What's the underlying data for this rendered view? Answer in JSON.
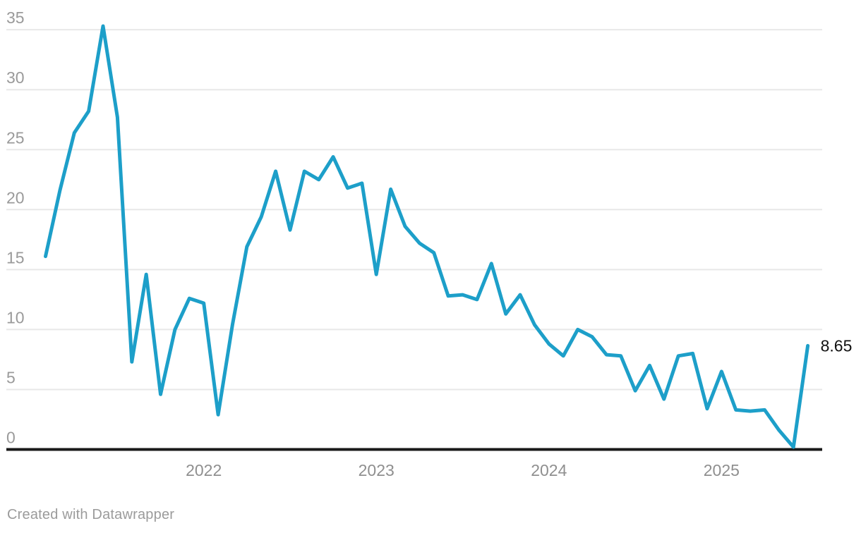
{
  "chart_data": {
    "type": "line",
    "x": [
      "2021-02",
      "2021-03",
      "2021-04",
      "2021-05",
      "2021-06",
      "2021-07",
      "2021-08",
      "2021-09",
      "2021-10",
      "2021-11",
      "2021-12",
      "2022-01",
      "2022-02",
      "2022-03",
      "2022-04",
      "2022-05",
      "2022-06",
      "2022-07",
      "2022-08",
      "2022-09",
      "2022-10",
      "2022-11",
      "2022-12",
      "2023-01",
      "2023-02",
      "2023-03",
      "2023-04",
      "2023-05",
      "2023-06",
      "2023-07",
      "2023-08",
      "2023-09",
      "2023-10",
      "2023-11",
      "2023-12",
      "2024-01",
      "2024-02",
      "2024-03",
      "2024-04",
      "2024-05",
      "2024-06",
      "2024-07",
      "2024-08",
      "2024-09",
      "2024-10",
      "2024-11",
      "2024-12",
      "2025-01",
      "2025-02",
      "2025-03",
      "2025-04",
      "2025-05",
      "2025-06",
      "2025-07"
    ],
    "values": [
      16.1,
      21.6,
      26.4,
      28.2,
      35.3,
      27.7,
      7.3,
      14.6,
      4.6,
      10.0,
      12.6,
      12.2,
      2.9,
      10.4,
      16.9,
      19.4,
      23.2,
      18.3,
      23.2,
      22.5,
      24.4,
      21.8,
      22.2,
      14.6,
      21.7,
      18.6,
      17.2,
      16.4,
      12.8,
      12.9,
      12.5,
      15.5,
      11.3,
      12.9,
      10.4,
      8.8,
      7.8,
      10.0,
      9.4,
      7.9,
      7.8,
      4.9,
      7.0,
      4.2,
      7.8,
      8.0,
      3.4,
      6.5,
      3.3,
      3.2,
      3.3,
      1.6,
      0.2,
      8.65
    ],
    "end_label": "8.65",
    "y_ticks": [
      0,
      5,
      10,
      15,
      20,
      25,
      30,
      35
    ],
    "x_ticks": [
      "2022",
      "2023",
      "2024",
      "2025"
    ],
    "ylim": [
      0,
      35
    ],
    "grid": "horizontal",
    "legend": "none",
    "line_color": "#1d9fc9",
    "grid_color": "#e8e8e8",
    "axis_color": "#191919",
    "tick_label_color": "#9a9a9a",
    "end_label_color": "#111111"
  },
  "footer": {
    "attribution": "Created with Datawrapper"
  }
}
